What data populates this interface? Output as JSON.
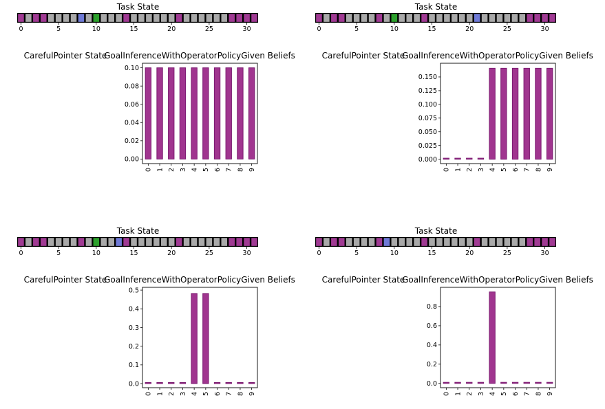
{
  "colors": {
    "goal": "#8c2a7f",
    "goal_fill": "#a03a93",
    "empty": "#a9a9a9",
    "start": "#2ca02c",
    "pointer": "#6f7ad6",
    "bar_fill": "#a0358f",
    "bar_edge": "#7b1a70"
  },
  "chart_data": [
    {
      "type": "panel",
      "task_state": {
        "title": "Task State",
        "ticks": [
          0,
          5,
          10,
          15,
          20,
          25,
          30
        ],
        "cells": [
          "goal",
          "empty",
          "goal",
          "goal",
          "empty",
          "empty",
          "empty",
          "empty",
          "goal",
          "empty",
          "start",
          "empty",
          "empty",
          "empty",
          "goal",
          "empty",
          "empty",
          "empty",
          "empty",
          "empty",
          "empty",
          "goal",
          "empty",
          "empty",
          "empty",
          "empty",
          "empty",
          "empty",
          "goal",
          "goal",
          "goal",
          "goal"
        ],
        "pointer_index": 8
      },
      "pointer_state_title": "CarefulPointer State",
      "beliefs": {
        "type": "bar",
        "title": "GoalInferenceWithOperatorPolicyGiven Beliefs",
        "categories": [
          "0",
          "1",
          "2",
          "3",
          "4",
          "5",
          "6",
          "7",
          "8",
          "9"
        ],
        "values": [
          0.1,
          0.1,
          0.1,
          0.1,
          0.1,
          0.1,
          0.1,
          0.1,
          0.1,
          0.1
        ],
        "ylim": [
          -0.005,
          0.105
        ],
        "yticks": [
          "0.00",
          "0.02",
          "0.04",
          "0.06",
          "0.08",
          "0.10"
        ]
      }
    },
    {
      "type": "panel",
      "task_state": {
        "title": "Task State",
        "ticks": [
          0,
          5,
          10,
          15,
          20,
          25,
          30
        ],
        "cells": [
          "goal",
          "empty",
          "goal",
          "goal",
          "empty",
          "empty",
          "empty",
          "empty",
          "goal",
          "empty",
          "start",
          "empty",
          "empty",
          "empty",
          "goal",
          "empty",
          "empty",
          "empty",
          "empty",
          "empty",
          "empty",
          "goal",
          "empty",
          "empty",
          "empty",
          "empty",
          "empty",
          "empty",
          "goal",
          "goal",
          "goal",
          "goal"
        ],
        "pointer_index": 21
      },
      "pointer_state_title": "CarefulPointer State",
      "beliefs": {
        "type": "bar",
        "title": "GoalInferenceWithOperatorPolicyGiven Beliefs",
        "categories": [
          "0",
          "1",
          "2",
          "3",
          "4",
          "5",
          "6",
          "7",
          "8",
          "9"
        ],
        "values": [
          0.0017,
          0.0017,
          0.0017,
          0.0017,
          0.1658,
          0.1658,
          0.1658,
          0.1658,
          0.1658,
          0.1658
        ],
        "ylim": [
          -0.008,
          0.175
        ],
        "yticks": [
          "0.000",
          "0.025",
          "0.050",
          "0.075",
          "0.100",
          "0.125",
          "0.150"
        ]
      }
    },
    {
      "type": "panel",
      "task_state": {
        "title": "Task State",
        "ticks": [
          0,
          5,
          10,
          15,
          20,
          25,
          30
        ],
        "cells": [
          "goal",
          "empty",
          "goal",
          "goal",
          "empty",
          "empty",
          "empty",
          "empty",
          "goal",
          "empty",
          "start",
          "empty",
          "empty",
          "empty",
          "goal",
          "empty",
          "empty",
          "empty",
          "empty",
          "empty",
          "empty",
          "goal",
          "empty",
          "empty",
          "empty",
          "empty",
          "empty",
          "empty",
          "goal",
          "goal",
          "goal",
          "goal"
        ],
        "pointer_index": 13
      },
      "pointer_state_title": "CarefulPointer State",
      "beliefs": {
        "type": "bar",
        "title": "GoalInferenceWithOperatorPolicyGiven Beliefs",
        "categories": [
          "0",
          "1",
          "2",
          "3",
          "4",
          "5",
          "6",
          "7",
          "8",
          "9"
        ],
        "values": [
          0.005,
          0.005,
          0.005,
          0.005,
          0.482,
          0.482,
          0.002,
          0.005,
          0.005,
          0.005
        ],
        "ylim": [
          -0.022,
          0.515
        ],
        "yticks": [
          "0.0",
          "0.1",
          "0.2",
          "0.3",
          "0.4",
          "0.5"
        ]
      }
    },
    {
      "type": "panel",
      "task_state": {
        "title": "Task State",
        "ticks": [
          0,
          5,
          10,
          15,
          20,
          25,
          30
        ],
        "cells": [
          "goal",
          "empty",
          "goal",
          "goal",
          "empty",
          "empty",
          "empty",
          "empty",
          "goal",
          "empty",
          "empty",
          "empty",
          "empty",
          "empty",
          "goal",
          "empty",
          "empty",
          "empty",
          "empty",
          "empty",
          "empty",
          "goal",
          "empty",
          "empty",
          "empty",
          "empty",
          "empty",
          "empty",
          "goal",
          "goal",
          "goal",
          "goal"
        ],
        "pointer_index": 9
      },
      "pointer_state_title": "CarefulPointer State",
      "beliefs": {
        "type": "bar",
        "title": "GoalInferenceWithOperatorPolicyGiven Beliefs",
        "categories": [
          "0",
          "1",
          "2",
          "3",
          "4",
          "5",
          "6",
          "7",
          "8",
          "9"
        ],
        "values": [
          0.009,
          0.009,
          0.009,
          0.009,
          0.952,
          0.009,
          0.001,
          0.001,
          0.001,
          0.001
        ],
        "ylim": [
          -0.045,
          1.0
        ],
        "yticks": [
          "0.0",
          "0.2",
          "0.4",
          "0.6",
          "0.8"
        ]
      }
    }
  ]
}
